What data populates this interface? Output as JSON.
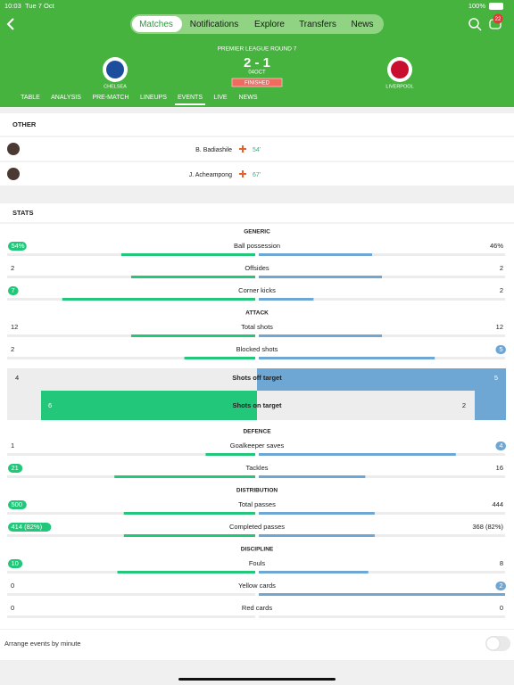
{
  "status_bar": {
    "time": "10:03",
    "date": "Tue 7 Oct",
    "battery": "100%"
  },
  "nav": {
    "tabs": [
      "Matches",
      "Notifications",
      "Explore",
      "Transfers",
      "News"
    ],
    "active": 0,
    "badge": 22
  },
  "match": {
    "competition": "PREMIER LEAGUE ROUND 7",
    "score": "2 - 1",
    "date": "04OCT",
    "status": "FINISHED",
    "home": "CHELSEA",
    "away": "LIVERPOOL"
  },
  "subtabs": {
    "items": [
      "TABLE",
      "ANALYSIS",
      "PRE-MATCH",
      "LINEUPS",
      "EVENTS",
      "LIVE",
      "NEWS"
    ],
    "active": 4
  },
  "other": {
    "title": "OTHER",
    "events": [
      {
        "player": "B. Badiashile",
        "minute": "54'"
      },
      {
        "player": "J. Acheampong",
        "minute": "67'"
      }
    ]
  },
  "stats": {
    "title": "STATS",
    "groups": [
      {
        "title": "GENERIC",
        "rows": [
          {
            "label": "Ball possession",
            "home": {
              "value": 54,
              "label": "54%"
            },
            "away": {
              "value": 46,
              "label": "46%"
            }
          },
          {
            "label": "Offsides",
            "home": 2,
            "away": 2
          },
          {
            "label": "Corner kicks",
            "home": 7,
            "away": 2
          }
        ]
      },
      {
        "title": "ATTACK",
        "rows": [
          {
            "label": "Total shots",
            "home": 12,
            "away": 12
          },
          {
            "label": "Blocked shots",
            "home": 2,
            "away": 5
          }
        ],
        "shots": {
          "off_label": "Shots off target",
          "off_home": 4,
          "off_away": 5,
          "on_label": "Shots on target",
          "on_home": 6,
          "on_away": 2
        }
      },
      {
        "title": "DEFENCE",
        "rows": [
          {
            "label": "Goalkeeper saves",
            "home": 1,
            "away": 4
          },
          {
            "label": "Tackles",
            "home": 21,
            "away": 16
          }
        ]
      },
      {
        "title": "DISTRIBUTION",
        "rows": [
          {
            "label": "Total passes",
            "home": 500,
            "away": 444
          },
          {
            "label": "Completed passes",
            "home": {
              "value": 414,
              "label": "414 (82%)"
            },
            "away": {
              "value": 368,
              "label": "368 (82%)"
            }
          }
        ]
      },
      {
        "title": "DISCIPLINE",
        "rows": [
          {
            "label": "Fouls",
            "home": 10,
            "away": 8
          },
          {
            "label": "Yellow cards",
            "home": 0,
            "away": 2
          },
          {
            "label": "Red cards",
            "home": 0,
            "away": 0
          }
        ]
      }
    ]
  },
  "footer": {
    "toggle_label": "Arrange events by minute"
  }
}
